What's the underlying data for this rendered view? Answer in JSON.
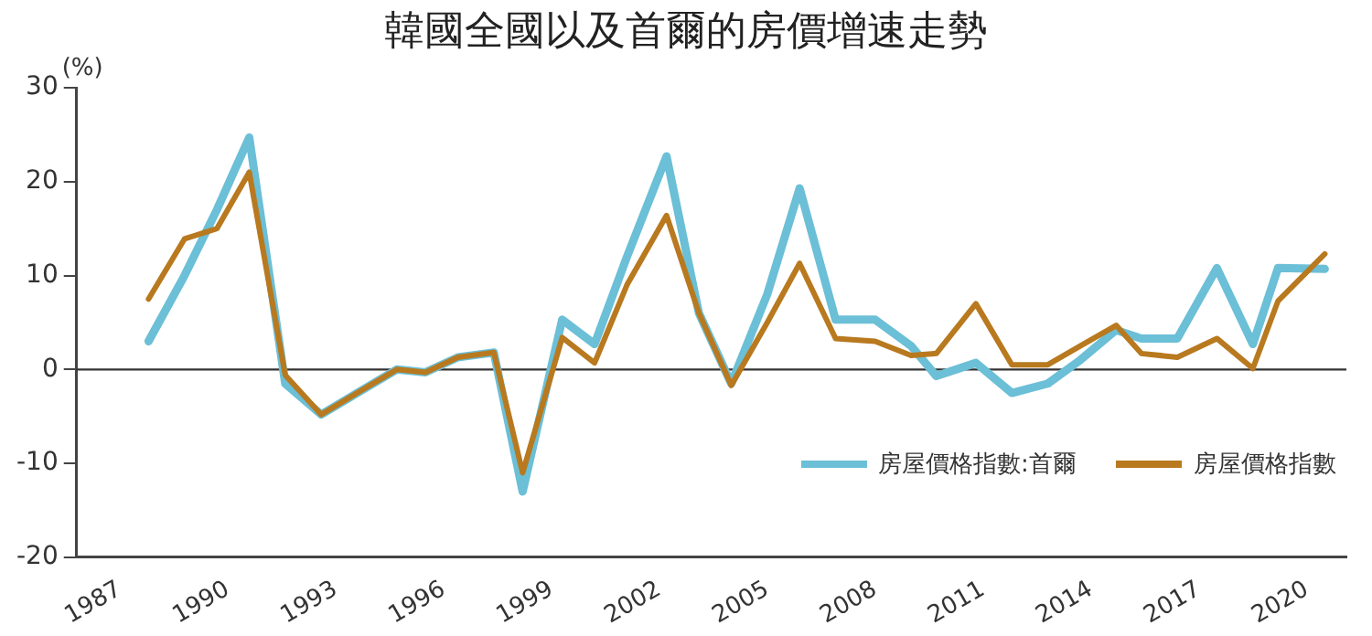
{
  "chart_data": {
    "type": "line",
    "title": "韓國全國以及首爾的房價增速走勢",
    "ylabel": "(%)",
    "xlim": [
      1985.8,
      2021.1
    ],
    "xticks": [
      1987,
      1990,
      1993,
      1996,
      1999,
      2002,
      2005,
      2008,
      2011,
      2014,
      2017,
      2020
    ],
    "ylim": [
      -20,
      30
    ],
    "yticks": [
      -20,
      -10,
      0,
      10,
      20,
      30
    ],
    "x": [
      1987.8,
      1988.8,
      1989.7,
      1990.6,
      1991.6,
      1992.6,
      1993.6,
      1994.7,
      1995.5,
      1996.4,
      1997.4,
      1998.2,
      1999.3,
      2000.2,
      2001.1,
      2002.2,
      2003.1,
      2004.0,
      2005.0,
      2005.9,
      2006.9,
      2008.0,
      2009.0,
      2009.7,
      2010.8,
      2011.8,
      2012.8,
      2013.7,
      2014.7,
      2015.4,
      2016.4,
      2017.5,
      2018.5,
      2019.2,
      2020.5
    ],
    "series": [
      {
        "name": "房屋價格指數:首爾",
        "color": "#6bbfd6",
        "values": [
          3,
          10,
          17,
          24.7,
          -1.5,
          -4.8,
          -2.5,
          0,
          -0.3,
          1.3,
          1.8,
          -13,
          5.3,
          2.7,
          12,
          22.7,
          6,
          -1.5,
          8,
          19.3,
          5.3,
          5.3,
          2.5,
          -0.7,
          0.7,
          -2.5,
          -1.5,
          1,
          4.2,
          3.3,
          3.3,
          10.8,
          2.7,
          10.8,
          10.7
        ]
      },
      {
        "name": "房屋價格指數",
        "color": "#b8791f",
        "values": [
          7.5,
          13.9,
          15,
          21,
          -0.6,
          -4.8,
          -2.5,
          0,
          -0.3,
          1.3,
          1.8,
          -11,
          3.4,
          0.7,
          9,
          16.4,
          6,
          -1.7,
          5,
          11.3,
          3.3,
          3,
          1.5,
          1.7,
          7,
          0.5,
          0.5,
          2.5,
          4.7,
          1.7,
          1.3,
          3.3,
          0.1,
          7.3,
          12.3
        ]
      }
    ],
    "ref_lines": [
      {
        "axis": "y",
        "value": 0,
        "color": "#333333"
      }
    ],
    "legend": "bottom right",
    "grid": false,
    "marker": "none",
    "line_style": "solid"
  }
}
